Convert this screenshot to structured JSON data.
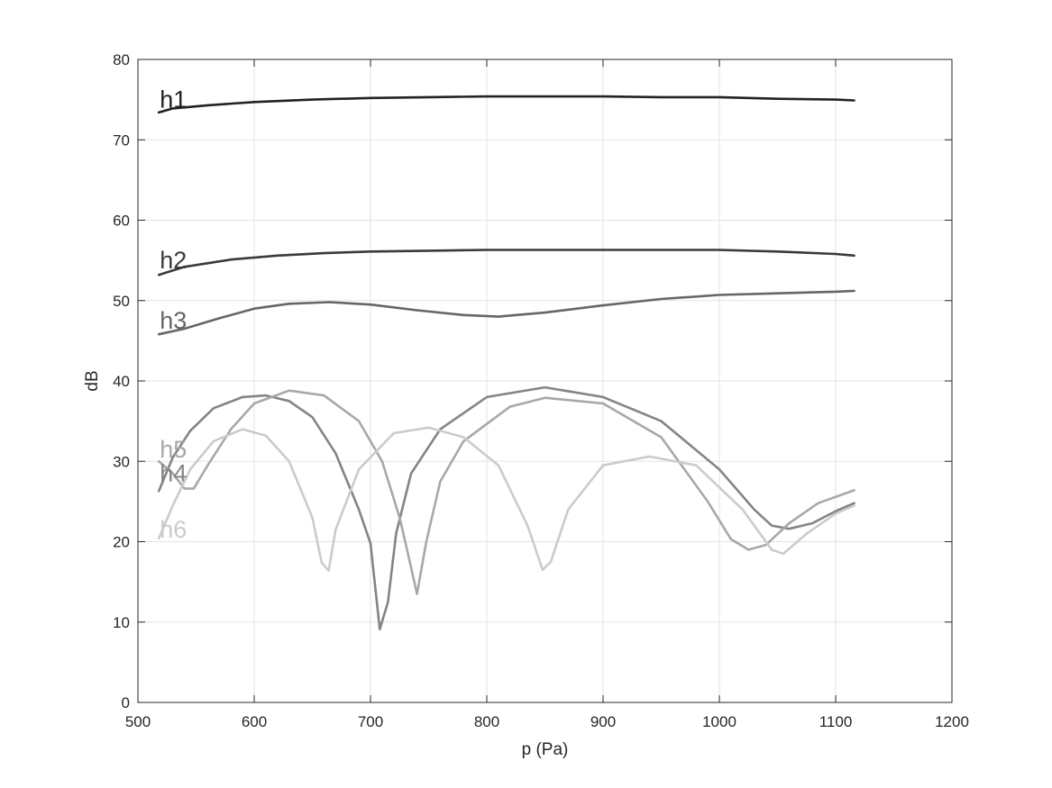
{
  "chart_data": {
    "type": "line",
    "title": "",
    "xlabel": "p (Pa)",
    "ylabel": "dB",
    "xlim": [
      500,
      1200
    ],
    "ylim": [
      0,
      80
    ],
    "xticks": [
      "500",
      "600",
      "700",
      "800",
      "900",
      "1000",
      "1100",
      "1200"
    ],
    "yticks": [
      "0",
      "10",
      "20",
      "30",
      "40",
      "50",
      "60",
      "70",
      "80"
    ],
    "grid": true,
    "legend": "none",
    "series": [
      {
        "name": "h1",
        "color": "#222222",
        "label_at": [
          518,
          75
        ],
        "x": [
          518,
          530,
          560,
          600,
          650,
          700,
          750,
          800,
          850,
          900,
          950,
          1000,
          1050,
          1100,
          1116
        ],
        "y": [
          73.4,
          73.9,
          74.3,
          74.7,
          75.0,
          75.2,
          75.3,
          75.4,
          75.4,
          75.4,
          75.3,
          75.3,
          75.1,
          75.0,
          74.9
        ]
      },
      {
        "name": "h2",
        "color": "#3a3a3a",
        "label_at": [
          518,
          55
        ],
        "x": [
          518,
          540,
          580,
          620,
          660,
          700,
          750,
          800,
          850,
          900,
          950,
          1000,
          1050,
          1100,
          1116
        ],
        "y": [
          53.2,
          54.2,
          55.1,
          55.6,
          55.9,
          56.1,
          56.2,
          56.3,
          56.3,
          56.3,
          56.3,
          56.3,
          56.1,
          55.8,
          55.6
        ]
      },
      {
        "name": "h3",
        "color": "#666666",
        "label_at": [
          518,
          47.5
        ],
        "x": [
          518,
          540,
          570,
          600,
          630,
          665,
          700,
          740,
          780,
          810,
          850,
          900,
          950,
          1000,
          1050,
          1100,
          1116
        ],
        "y": [
          45.8,
          46.5,
          47.8,
          49.0,
          49.6,
          49.8,
          49.5,
          48.8,
          48.2,
          48.0,
          48.5,
          49.4,
          50.2,
          50.7,
          50.9,
          51.1,
          51.2
        ]
      },
      {
        "name": "h4",
        "color": "#848484",
        "label_at": [
          518,
          28.5
        ],
        "x": [
          518,
          530,
          545,
          565,
          590,
          610,
          630,
          650,
          670,
          690,
          700,
          708,
          715,
          722,
          735,
          760,
          800,
          850,
          900,
          950,
          1000,
          1030,
          1045,
          1060,
          1080,
          1100,
          1116
        ],
        "y": [
          26.3,
          30.5,
          33.8,
          36.6,
          38.0,
          38.2,
          37.5,
          35.5,
          31.0,
          24.0,
          19.8,
          9.1,
          12.5,
          21.0,
          28.5,
          34.0,
          38.0,
          39.2,
          38.0,
          35.0,
          29.0,
          24.0,
          22.0,
          21.6,
          22.3,
          23.8,
          24.8
        ]
      },
      {
        "name": "h5",
        "color": "#a8a8a8",
        "label_at": [
          518,
          31.5
        ],
        "x": [
          518,
          530,
          540,
          548,
          560,
          580,
          600,
          630,
          660,
          690,
          710,
          725,
          733,
          740,
          748,
          760,
          780,
          820,
          850,
          900,
          950,
          990,
          1010,
          1025,
          1040,
          1060,
          1085,
          1116
        ],
        "y": [
          30.0,
          28.5,
          26.6,
          26.6,
          29.5,
          34.0,
          37.2,
          38.8,
          38.2,
          35.0,
          30.0,
          23.0,
          18.0,
          13.5,
          20.0,
          27.5,
          32.5,
          36.8,
          37.9,
          37.2,
          33.0,
          25.0,
          20.3,
          19.0,
          19.6,
          22.3,
          24.8,
          26.4
        ]
      },
      {
        "name": "h6",
        "color": "#cbcbcb",
        "label_at": [
          518,
          21.5
        ],
        "x": [
          518,
          530,
          545,
          565,
          590,
          610,
          630,
          650,
          658,
          664,
          670,
          690,
          720,
          750,
          780,
          810,
          835,
          848,
          855,
          870,
          900,
          940,
          980,
          1020,
          1045,
          1055,
          1075,
          1100,
          1116
        ],
        "y": [
          20.4,
          24.5,
          29.0,
          32.5,
          34.0,
          33.2,
          30.0,
          23.0,
          17.4,
          16.4,
          21.5,
          29.0,
          33.5,
          34.2,
          33.0,
          29.5,
          22.0,
          16.5,
          17.5,
          24.0,
          29.5,
          30.6,
          29.5,
          24.0,
          19.0,
          18.5,
          21.0,
          23.5,
          24.5
        ]
      }
    ]
  }
}
